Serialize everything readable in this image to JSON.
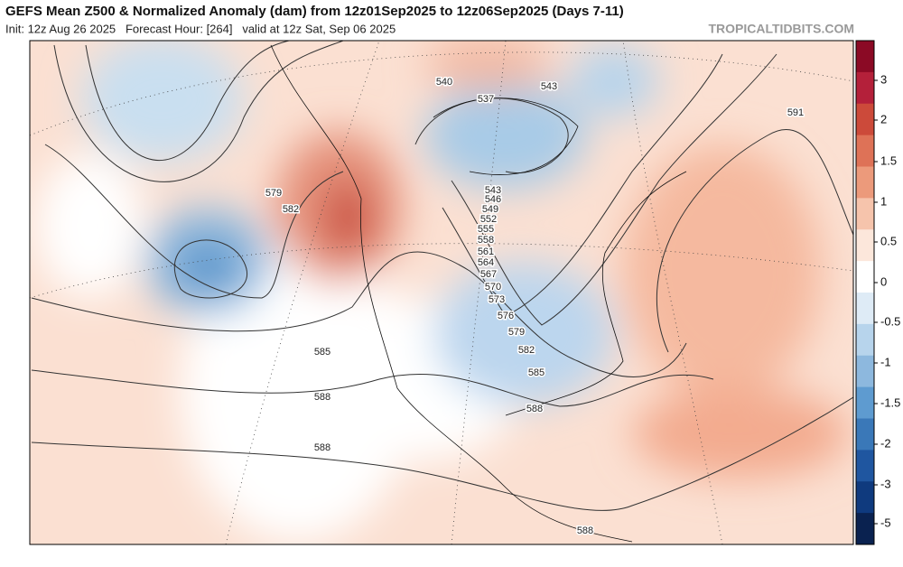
{
  "header": {
    "title": "GEFS Mean Z500 & Normalized Anomaly (dam) from 12z01Sep2025 to 12z06Sep2025 (Days 7-11)",
    "init_line": "Init: 12z Aug 26 2025   Forecast Hour: [264]   valid at 12z Sat, Sep 06 2025",
    "site": "TROPICALTIDBITS.COM"
  },
  "colorbar": {
    "labels": [
      "3",
      "2",
      "1.5",
      "1",
      "0.5",
      "0",
      "-0.5",
      "-1",
      "-1.5",
      "-2",
      "-3",
      "-5"
    ]
  },
  "contour_labels": [
    "540",
    "537",
    "543",
    "591",
    "579",
    "582",
    "543",
    "546",
    "549",
    "552",
    "555",
    "558",
    "561",
    "564",
    "567",
    "570",
    "573",
    "576",
    "579",
    "582",
    "585",
    "585",
    "588",
    "588",
    "588",
    "588"
  ]
}
